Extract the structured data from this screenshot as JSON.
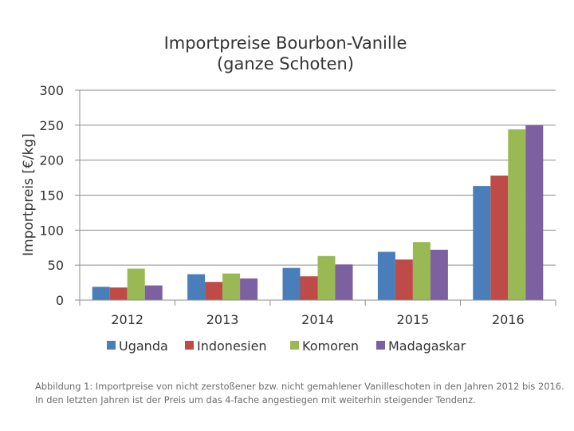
{
  "chart_data": {
    "type": "bar",
    "title_lines": [
      "Importpreise Bourbon-Vanille",
      "(ganze Schoten)"
    ],
    "ylabel": "Importpreis [€/kg]",
    "xlabel": "",
    "categories": [
      "2012",
      "2013",
      "2014",
      "2015",
      "2016"
    ],
    "ylim": [
      0,
      300
    ],
    "yticks": [
      0,
      50,
      100,
      150,
      200,
      250,
      300
    ],
    "grid": true,
    "legend_position": "bottom",
    "series": [
      {
        "name": "Uganda",
        "color": "#4a7ebb",
        "values": [
          19,
          37,
          46,
          69,
          163
        ]
      },
      {
        "name": "Indonesien",
        "color": "#be4b48",
        "values": [
          18,
          26,
          34,
          58,
          178
        ]
      },
      {
        "name": "Komoren",
        "color": "#98b954",
        "values": [
          45,
          38,
          63,
          83,
          244
        ]
      },
      {
        "name": "Madagaskar",
        "color": "#7d60a0",
        "values": [
          21,
          31,
          51,
          72,
          250
        ]
      }
    ]
  },
  "caption": "Abbildung 1: Importpreise von nicht zerstoßener bzw. nicht gemahlener Vanilleschoten in den Jahren 2012 bis 2016. In den letzten Jahren ist der Preis um das 4-fache angestiegen mit weiterhin steigender Tendenz."
}
